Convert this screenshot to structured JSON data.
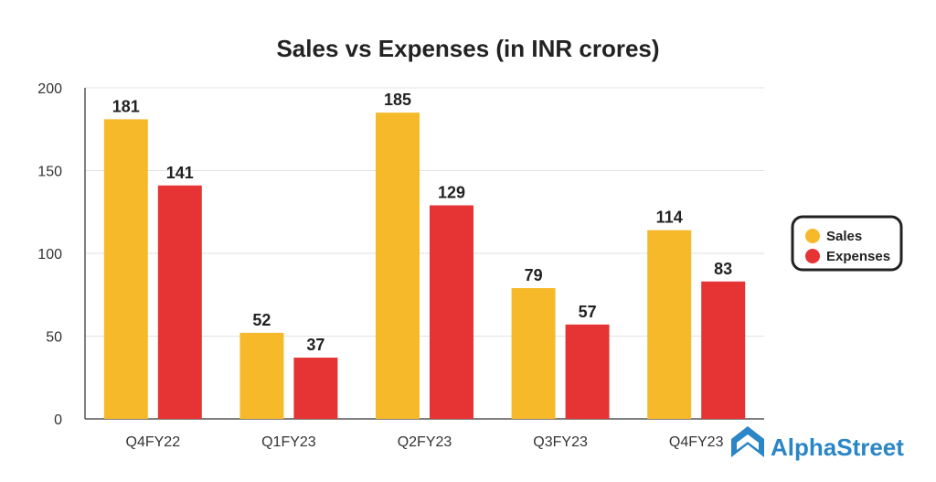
{
  "colors": {
    "sales": "#f6b92a",
    "expenses": "#e63434",
    "grid": "#e2e2e2",
    "axis": "#555555",
    "brand": "#2a86c6"
  },
  "brand": {
    "name": "AlphaStreet",
    "icon": "alphastreet-logo-icon"
  },
  "chart_data": {
    "type": "bar",
    "title": "Sales vs Expenses (in INR crores)",
    "xlabel": "",
    "ylabel": "",
    "categories": [
      "Q4FY22",
      "Q1FY23",
      "Q2FY23",
      "Q3FY23",
      "Q4FY23"
    ],
    "series": [
      {
        "name": "Sales",
        "values": [
          181,
          52,
          185,
          79,
          114
        ]
      },
      {
        "name": "Expenses",
        "values": [
          141,
          37,
          129,
          57,
          83
        ]
      }
    ],
    "ylim": [
      0,
      200
    ],
    "yticks": [
      0,
      50,
      100,
      150,
      200
    ],
    "grid": true,
    "legend": "right"
  }
}
